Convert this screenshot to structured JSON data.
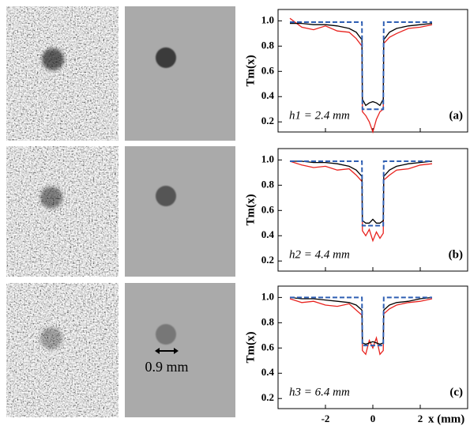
{
  "images": {
    "scale_label": "0.9 mm"
  },
  "chart_data": [
    {
      "type": "line",
      "ylabel": "Tm(x)",
      "annotation": "h1 = 2.4 mm",
      "panel_label": "(a)",
      "xlim": [
        -4,
        4
      ],
      "xticks": [
        -2,
        0,
        2
      ],
      "ylim": [
        0.12,
        1.09
      ],
      "yticks": [
        0.2,
        0.4,
        0.6,
        0.8,
        {
          "value": 1,
          "label": "1.0"
        }
      ],
      "x": [
        -3.5,
        -3,
        -2.5,
        -2,
        -1.5,
        -1,
        -0.7,
        -0.46,
        -0.44,
        -0.3,
        -0.15,
        0,
        0.15,
        0.3,
        0.44,
        0.46,
        0.7,
        1,
        1.5,
        2,
        2.5
      ],
      "series": [
        {
          "color": "#e8231f",
          "style": "solid",
          "values": [
            1.02,
            0.95,
            0.93,
            0.96,
            0.92,
            0.91,
            0.86,
            0.8,
            0.28,
            0.25,
            0.2,
            0.12,
            0.22,
            0.28,
            0.3,
            0.82,
            0.87,
            0.9,
            0.94,
            0.95,
            0.97
          ]
        },
        {
          "color": "#000000",
          "style": "solid",
          "values": [
            0.98,
            0.98,
            0.97,
            0.97,
            0.96,
            0.94,
            0.91,
            0.85,
            0.38,
            0.33,
            0.35,
            0.36,
            0.35,
            0.33,
            0.38,
            0.85,
            0.91,
            0.94,
            0.96,
            0.97,
            0.98
          ]
        },
        {
          "color": "#2f5fb3",
          "style": "dashed",
          "values": [
            0.99,
            0.99,
            0.99,
            0.99,
            0.99,
            0.99,
            0.99,
            0.99,
            0.3,
            0.3,
            0.3,
            0.3,
            0.3,
            0.3,
            0.3,
            0.99,
            0.99,
            0.99,
            0.99,
            0.99,
            0.99
          ]
        }
      ]
    },
    {
      "type": "line",
      "ylabel": "Tm(x)",
      "annotation": "h2 = 4.4 mm",
      "panel_label": "(b)",
      "xlim": [
        -4,
        4
      ],
      "xticks": [
        -2,
        0,
        2
      ],
      "ylim": [
        0.12,
        1.09
      ],
      "yticks": [
        0.2,
        0.4,
        0.6,
        0.8,
        {
          "value": 1,
          "label": "1.0"
        }
      ],
      "x": [
        -3.5,
        -3,
        -2.5,
        -2,
        -1.5,
        -1,
        -0.7,
        -0.46,
        -0.44,
        -0.3,
        -0.15,
        0,
        0.15,
        0.3,
        0.44,
        0.46,
        0.7,
        1,
        1.5,
        2,
        2.5
      ],
      "series": [
        {
          "color": "#e8231f",
          "style": "solid",
          "values": [
            0.99,
            0.96,
            0.94,
            0.95,
            0.92,
            0.93,
            0.88,
            0.83,
            0.44,
            0.4,
            0.45,
            0.36,
            0.43,
            0.38,
            0.42,
            0.84,
            0.88,
            0.92,
            0.93,
            0.96,
            0.97
          ]
        },
        {
          "color": "#000000",
          "style": "solid",
          "values": [
            0.99,
            0.99,
            0.98,
            0.98,
            0.97,
            0.95,
            0.92,
            0.87,
            0.52,
            0.5,
            0.5,
            0.53,
            0.5,
            0.5,
            0.52,
            0.87,
            0.92,
            0.95,
            0.97,
            0.98,
            0.99
          ]
        },
        {
          "color": "#2f5fb3",
          "style": "dashed",
          "values": [
            0.99,
            0.99,
            0.99,
            0.99,
            0.99,
            0.99,
            0.99,
            0.99,
            0.48,
            0.48,
            0.48,
            0.48,
            0.48,
            0.48,
            0.48,
            0.99,
            0.99,
            0.99,
            0.99,
            0.99,
            0.99
          ]
        }
      ]
    },
    {
      "type": "line",
      "ylabel": "Tm(x)",
      "annotation": "h3 = 6.4 mm",
      "panel_label": "(c)",
      "xlabel": "x (mm)",
      "xlim": [
        -4,
        4
      ],
      "xticks": [
        -2,
        0,
        2
      ],
      "ylim": [
        0.12,
        1.09
      ],
      "yticks": [
        0.2,
        0.4,
        0.6,
        0.8,
        {
          "value": 1,
          "label": "1.0"
        }
      ],
      "x": [
        -3.5,
        -3,
        -2.5,
        -2,
        -1.5,
        -1,
        -0.7,
        -0.46,
        -0.44,
        -0.3,
        -0.15,
        0,
        0.15,
        0.3,
        0.44,
        0.46,
        0.7,
        1,
        1.5,
        2,
        2.5
      ],
      "series": [
        {
          "color": "#e8231f",
          "style": "solid",
          "values": [
            0.99,
            0.96,
            0.97,
            0.94,
            0.93,
            0.95,
            0.9,
            0.86,
            0.58,
            0.55,
            0.66,
            0.6,
            0.68,
            0.55,
            0.58,
            0.87,
            0.91,
            0.94,
            0.96,
            0.97,
            0.99
          ]
        },
        {
          "color": "#000000",
          "style": "solid",
          "values": [
            1.0,
            0.99,
            0.99,
            0.98,
            0.97,
            0.96,
            0.94,
            0.9,
            0.64,
            0.63,
            0.64,
            0.65,
            0.64,
            0.63,
            0.64,
            0.9,
            0.94,
            0.96,
            0.97,
            0.99,
            1.0
          ]
        },
        {
          "color": "#2f5fb3",
          "style": "dashed",
          "values": [
            1.0,
            1.0,
            1.0,
            1.0,
            1.0,
            1.0,
            1.0,
            1.0,
            0.62,
            0.62,
            0.62,
            0.62,
            0.62,
            0.62,
            0.62,
            1.0,
            1.0,
            1.0,
            1.0,
            1.0,
            1.0
          ]
        }
      ]
    }
  ]
}
